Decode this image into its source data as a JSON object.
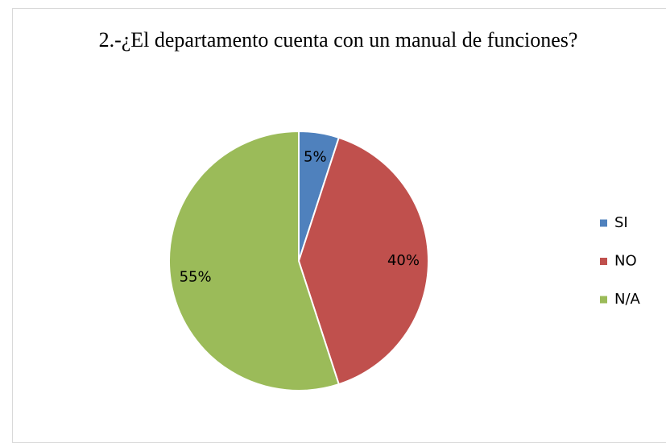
{
  "chart_data": {
    "type": "pie",
    "title": "2.-¿El departamento cuenta con un manual de funciones?",
    "categories": [
      "SI",
      "NO",
      "N/A"
    ],
    "values": [
      5,
      40,
      55
    ],
    "value_labels": [
      "5%",
      "40%",
      "55%"
    ],
    "colors": [
      "#4f81bd",
      "#c0504d",
      "#9bbb59"
    ],
    "legend": "right"
  }
}
